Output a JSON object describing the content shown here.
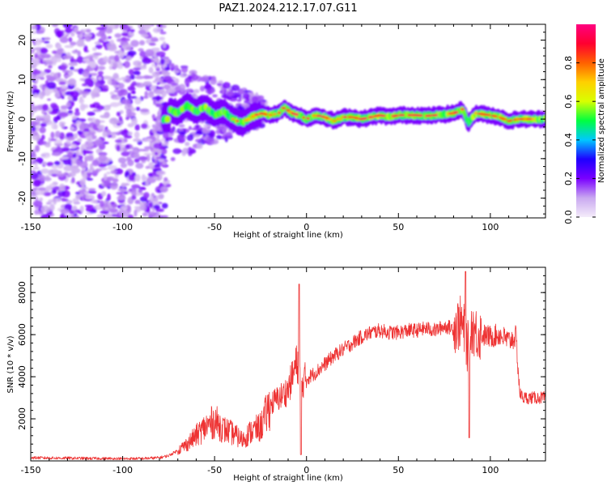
{
  "figure": {
    "title": "PAZ1.2024.212.17.07.G11"
  },
  "chart_data": [
    {
      "type": "heatmap",
      "title": "PAZ1.2024.212.17.07.G11",
      "xlabel": "Height of straight line (km)",
      "ylabel": "Frequency (Hz)",
      "xlim": [
        -150,
        130
      ],
      "ylim": [
        -25,
        24
      ],
      "x_ticks": [
        -150,
        -100,
        -50,
        0,
        50,
        100
      ],
      "y_ticks": [
        -20,
        -10,
        0,
        10,
        20
      ],
      "x_tick_labels": [
        "-150",
        "-100",
        "-50",
        "0",
        "50",
        "100"
      ],
      "y_tick_labels": [
        "-20",
        "-10",
        "0",
        "10",
        "20"
      ],
      "ridge": [
        {
          "x": -75,
          "y": 2.5
        },
        {
          "x": -70,
          "y": 1.5
        },
        {
          "x": -65,
          "y": 3.5
        },
        {
          "x": -60,
          "y": 2.0
        },
        {
          "x": -55,
          "y": 3.0
        },
        {
          "x": -50,
          "y": 1.0
        },
        {
          "x": -45,
          "y": 2.0
        },
        {
          "x": -40,
          "y": 0.0
        },
        {
          "x": -35,
          "y": -1.0
        },
        {
          "x": -30,
          "y": 0.5
        },
        {
          "x": -25,
          "y": 1.5
        },
        {
          "x": -20,
          "y": 1.0
        },
        {
          "x": -15,
          "y": 1.5
        },
        {
          "x": -12,
          "y": 3.0
        },
        {
          "x": -8,
          "y": 1.5
        },
        {
          "x": -4,
          "y": 1.0
        },
        {
          "x": 0,
          "y": 0.0
        },
        {
          "x": 5,
          "y": 1.0
        },
        {
          "x": 10,
          "y": 0.5
        },
        {
          "x": 15,
          "y": -0.5
        },
        {
          "x": 20,
          "y": 0.5
        },
        {
          "x": 25,
          "y": 0.5
        },
        {
          "x": 30,
          "y": 0.0
        },
        {
          "x": 35,
          "y": 0.5
        },
        {
          "x": 40,
          "y": 1.0
        },
        {
          "x": 45,
          "y": 0.5
        },
        {
          "x": 50,
          "y": 1.0
        },
        {
          "x": 55,
          "y": 1.0
        },
        {
          "x": 60,
          "y": 1.0
        },
        {
          "x": 65,
          "y": 0.8
        },
        {
          "x": 70,
          "y": 1.0
        },
        {
          "x": 75,
          "y": 1.2
        },
        {
          "x": 80,
          "y": 1.5
        },
        {
          "x": 85,
          "y": 2.5
        },
        {
          "x": 88,
          "y": -1.0
        },
        {
          "x": 92,
          "y": 1.5
        },
        {
          "x": 100,
          "y": 1.0
        },
        {
          "x": 105,
          "y": 0.5
        },
        {
          "x": 110,
          "y": -0.5
        },
        {
          "x": 115,
          "y": 0.0
        },
        {
          "x": 120,
          "y": 0.0
        },
        {
          "x": 125,
          "y": 0.0
        },
        {
          "x": 130,
          "y": 0.0
        }
      ],
      "colorbar": {
        "label": "Normalized spectral amplitude",
        "range": [
          0,
          1
        ],
        "ticks": [
          0.0,
          0.2,
          0.4,
          0.6,
          0.8
        ],
        "tick_labels": [
          "0.0",
          "0.2",
          "0.4",
          "0.6",
          "0.8"
        ],
        "colormap": [
          "#f4ecfa",
          "#c9a8f0",
          "#7a00ff",
          "#1e00ff",
          "#00c8ff",
          "#00ff40",
          "#d8ff00",
          "#ffd000",
          "#ff6000",
          "#ff0030",
          "#ff0080"
        ]
      }
    },
    {
      "type": "line",
      "xlabel": "Height of straight line (km)",
      "ylabel": "SNR (10 * v/v)",
      "xlim": [
        -150,
        130
      ],
      "ylim": [
        0,
        9200
      ],
      "x_ticks": [
        -150,
        -100,
        -50,
        0,
        50,
        100
      ],
      "y_ticks": [
        2000,
        4000,
        6000,
        8000
      ],
      "x_tick_labels": [
        "-150",
        "-100",
        "-50",
        "0",
        "50",
        "100"
      ],
      "y_tick_labels": [
        "2000",
        "4000",
        "6000",
        "8000"
      ],
      "line_color": "#ee3333",
      "series": [
        {
          "x": [
            -150,
            -140,
            -130,
            -120,
            -110,
            -100,
            -90,
            -80,
            -75,
            -70,
            -65,
            -60,
            -55,
            -50,
            -45,
            -40,
            -35,
            -30,
            -25,
            -20,
            -18,
            -15,
            -12,
            -10,
            -8,
            -6,
            -4,
            -3,
            -2,
            0,
            5,
            10,
            15,
            20,
            25,
            30,
            35,
            40,
            45,
            50,
            55,
            60,
            65,
            70,
            75,
            80,
            84,
            86,
            88,
            90,
            92,
            95,
            100,
            105,
            110,
            114,
            116,
            118,
            120,
            125,
            130
          ],
          "y": [
            150,
            140,
            130,
            120,
            110,
            100,
            110,
            150,
            250,
            500,
            800,
            1200,
            1600,
            1900,
            1500,
            1300,
            1000,
            1400,
            1600,
            2600,
            2800,
            3000,
            3200,
            3400,
            3900,
            4500,
            4700,
            3000,
            3800,
            3900,
            4200,
            4600,
            5000,
            5300,
            5600,
            5900,
            6100,
            6200,
            6100,
            6100,
            6200,
            6200,
            6300,
            6200,
            6400,
            6300,
            6600,
            6100,
            5300,
            6400,
            6100,
            6000,
            5900,
            6000,
            5700,
            5900,
            3200,
            3000,
            3000,
            3000,
            3000
          ]
        }
      ]
    }
  ]
}
